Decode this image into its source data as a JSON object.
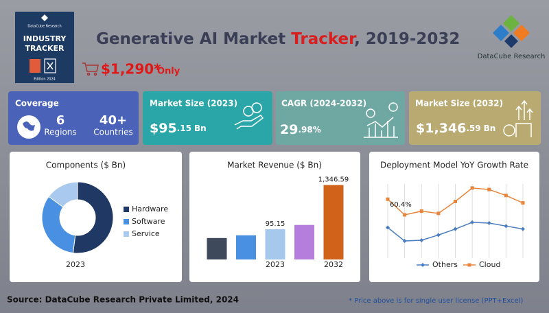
{
  "header": {
    "badge_brand": "DataCube Research",
    "badge_title_lines": [
      "INDUSTRY",
      "TRACKER"
    ],
    "badge_edition": "Edition 2024",
    "title_parts": [
      "Generative AI Market ",
      "Tracker",
      ", 2019-2032"
    ],
    "price": "$1,290*",
    "price_note": "Only",
    "logo_text": "DataCube Research"
  },
  "cards": [
    {
      "title": "Coverage",
      "items": [
        {
          "value": "6",
          "label": "Regions"
        },
        {
          "value": "40+",
          "label": "Countries"
        }
      ]
    },
    {
      "title": "Market Size (2023)",
      "value_main": "$95",
      "value_decimal": ".15",
      "unit": "Bn"
    },
    {
      "title": "CAGR (2024-2032)",
      "value_main": "29",
      "value_decimal": ".98%"
    },
    {
      "title": "Market Size (2032)",
      "value_main": "$1,346",
      "value_decimal": ".59",
      "unit": "Bn"
    }
  ],
  "chart_data": [
    {
      "type": "donut",
      "title": "Components ($ Bn)",
      "caption": "2023",
      "categories": [
        "Hardware",
        "Software",
        "Service"
      ],
      "values": [
        49.5,
        31.4,
        14.25
      ],
      "colors": [
        "#1f3864",
        "#4a90e2",
        "#a9c9ee"
      ],
      "legend": "right"
    },
    {
      "type": "bar",
      "title": "Market Revenue ($ Bn)",
      "categories": [
        null,
        null,
        "2023",
        null,
        "2032"
      ],
      "values": [
        56,
        66,
        95.15,
        123,
        1346.59
      ],
      "value_labels": [
        null,
        null,
        "95.15",
        null,
        "1,346.59"
      ],
      "colors": [
        "#3e4a5c",
        "#4a90e2",
        "#a5c8ec",
        "#b57edc",
        "#d0621a"
      ],
      "log": true,
      "ylim": [
        15.5,
        2000
      ]
    },
    {
      "type": "line",
      "title": "Deployment Model YoY Growth Rate",
      "categories": [
        null,
        null,
        null,
        null,
        null,
        null,
        null,
        null,
        null
      ],
      "ylim": [
        20,
        72
      ],
      "legend": "bottom",
      "series": [
        {
          "name": "Others",
          "color": "#4a7cc0",
          "marker": "diamond",
          "values": [
            41.4,
            32.4,
            32.9,
            36.4,
            40.4,
            44.9,
            44.4,
            42.4,
            40.4
          ]
        },
        {
          "name": "Cloud",
          "color": "#e8853a",
          "marker": "square",
          "values": [
            60.4,
            49.9,
            52.4,
            50.9,
            58.9,
            67.9,
            66.9,
            62.9,
            57.9
          ],
          "value_labels": [
            "60.4%",
            null,
            null,
            null,
            null,
            null,
            null,
            null,
            null
          ]
        }
      ]
    }
  ],
  "footer": {
    "source": "Source: DataCube Research Private Limited, 2024",
    "note": "* Price above is for single user license (PPT+Excel)"
  }
}
